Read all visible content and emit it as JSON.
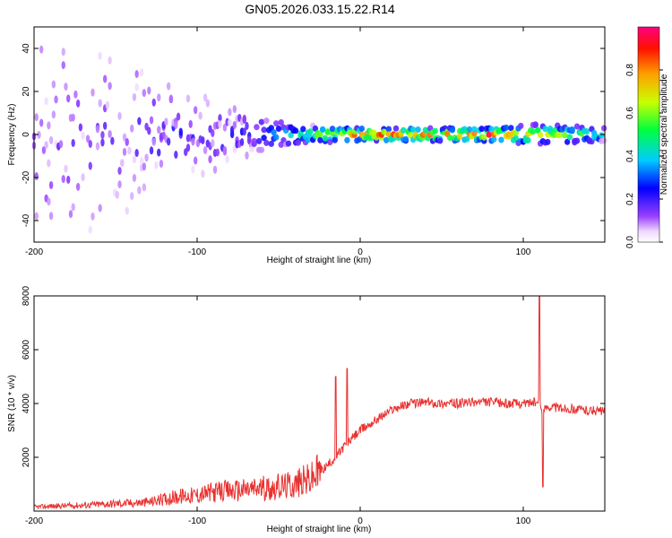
{
  "title": "GN05.2026.033.15.22.R14",
  "chart_data": [
    {
      "type": "heatmap",
      "xlabel": "Height of straight line (km)",
      "ylabel": "Frequency (Hz)",
      "xlim": [
        -200,
        150
      ],
      "ylim": [
        -50,
        50
      ],
      "xticks": [
        -200,
        -100,
        0,
        100
      ],
      "yticks": [
        -40,
        -20,
        0,
        20,
        40
      ],
      "colorbar": {
        "label": "Normalized spectral amplitude",
        "range": [
          0,
          1
        ],
        "ticks": [
          0.0,
          0.2,
          0.4,
          0.6,
          0.8
        ],
        "colors": [
          "#ffffff",
          "#8000ff",
          "#0000ff",
          "#00ffff",
          "#00ff00",
          "#ffff00",
          "#ff0000",
          "#ff00ff"
        ]
      },
      "grid": false,
      "description_points": [
        {
          "x": -180,
          "spread_hz": 45,
          "amplitude": 0.12
        },
        {
          "x": -150,
          "spread_hz": 45,
          "amplitude": 0.1
        },
        {
          "x": -120,
          "spread_hz": 25,
          "amplitude": 0.18
        },
        {
          "x": -100,
          "spread_hz": 20,
          "amplitude": 0.16
        },
        {
          "x": -75,
          "spread_hz": 12,
          "amplitude": 0.2
        },
        {
          "x": -50,
          "spread_hz": 6,
          "amplitude": 0.35
        },
        {
          "x": -25,
          "spread_hz": 4,
          "amplitude": 0.6
        },
        {
          "x": 0,
          "spread_hz": 3,
          "amplitude": 0.85
        },
        {
          "x": 50,
          "spread_hz": 3,
          "amplitude": 0.8
        },
        {
          "x": 80,
          "spread_hz": 3,
          "amplitude": 0.9
        },
        {
          "x": 110,
          "spread_hz": 5,
          "amplitude": 0.7
        },
        {
          "x": 150,
          "spread_hz": 3,
          "amplitude": 0.45
        }
      ]
    },
    {
      "type": "line",
      "xlabel": "Height of straight line (km)",
      "ylabel": "SNR (10 * v/v)",
      "xlim": [
        -200,
        150
      ],
      "ylim": [
        0,
        8000
      ],
      "xticks": [
        -200,
        -100,
        0,
        100
      ],
      "yticks": [
        2000,
        4000,
        6000,
        8000
      ],
      "grid": false,
      "color": "#e8312f",
      "series": [
        {
          "x": [
            -200,
            -190,
            -180,
            -170,
            -160,
            -150,
            -140,
            -130,
            -120,
            -110,
            -100,
            -90,
            -80,
            -70,
            -60,
            -50,
            -40,
            -30,
            -20,
            -15,
            -10,
            -5,
            0,
            10,
            20,
            30,
            40,
            50,
            60,
            70,
            80,
            90,
            100,
            105,
            110,
            112,
            115,
            120,
            130,
            140,
            150
          ],
          "values": [
            150,
            180,
            200,
            220,
            250,
            280,
            300,
            330,
            450,
            550,
            600,
            700,
            750,
            800,
            850,
            900,
            1000,
            1200,
            1700,
            2000,
            2400,
            2700,
            3000,
            3400,
            3800,
            4000,
            4050,
            4000,
            4000,
            4050,
            4050,
            4000,
            4000,
            4050,
            4000,
            3700,
            3900,
            3850,
            3800,
            3750,
            3700
          ],
          "spikes": [
            {
              "x": -15,
              "value": 5000
            },
            {
              "x": -8,
              "value": 5300
            },
            {
              "x": 110,
              "value": 8000
            },
            {
              "x": 112,
              "value": 900
            }
          ]
        }
      ]
    }
  ]
}
